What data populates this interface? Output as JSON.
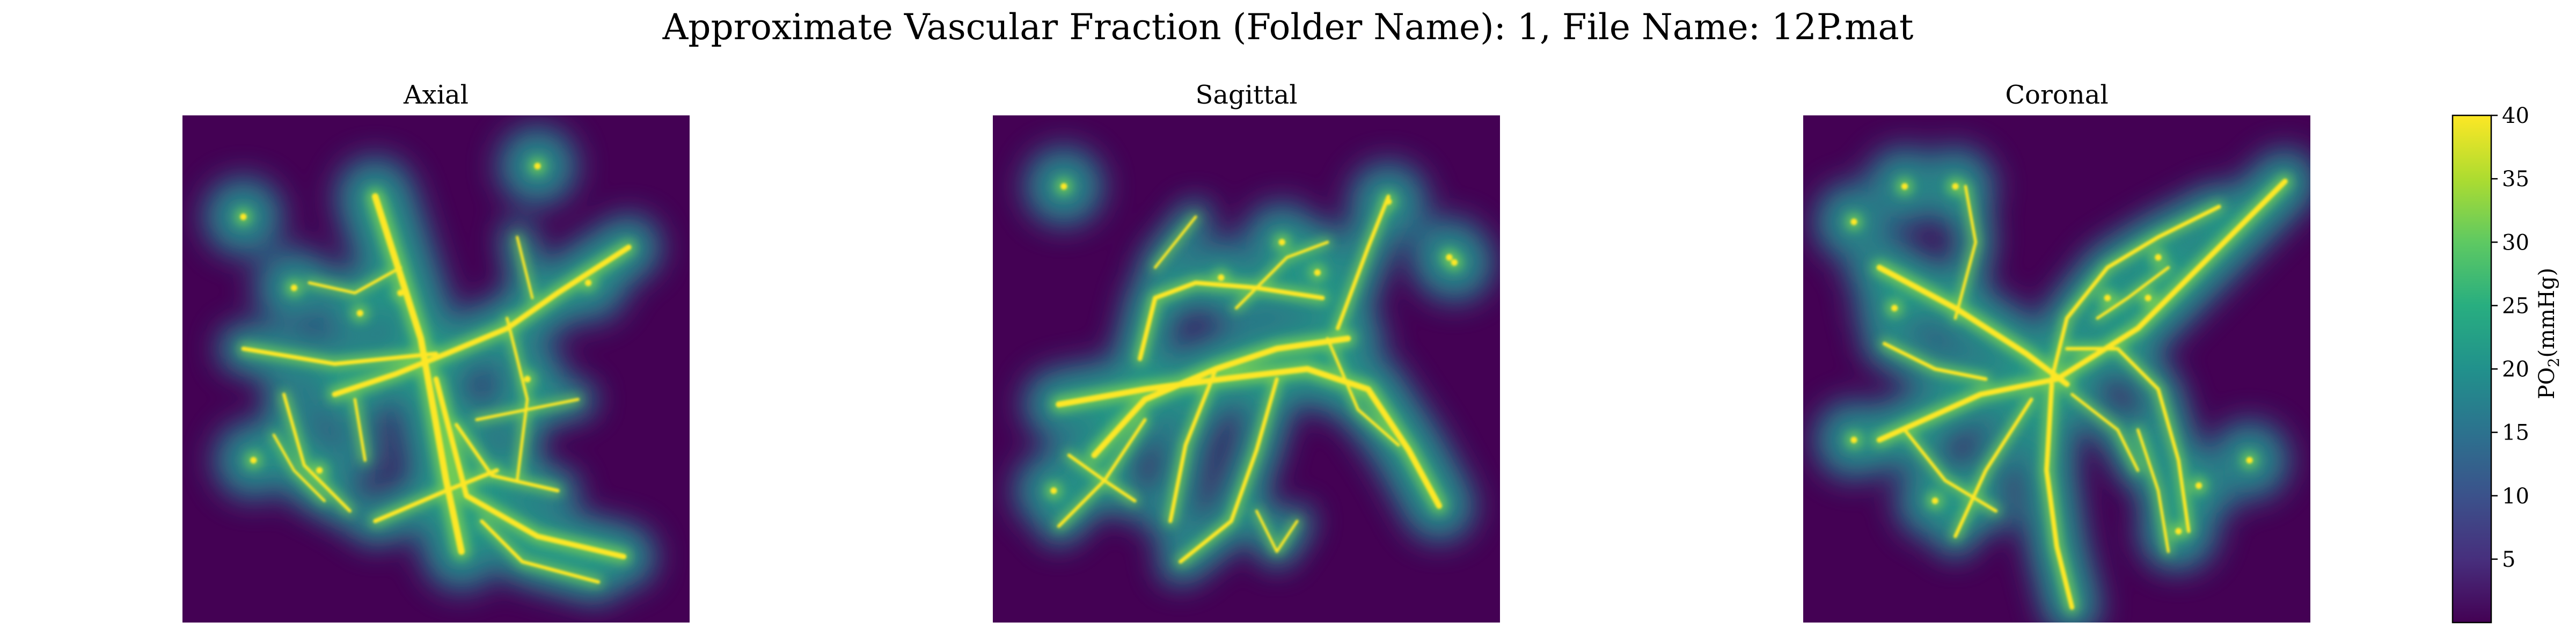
{
  "figure": {
    "suptitle": "Approximate Vascular Fraction (Folder Name): 1, File Name: 12P.mat"
  },
  "chart_data": {
    "type": "heatmap",
    "panels": [
      {
        "title": "Axial",
        "vessels": [
          {
            "points": [
              [
                0.38,
                0.16
              ],
              [
                0.47,
                0.44
              ],
              [
                0.52,
                0.72
              ],
              [
                0.55,
                0.86
              ]
            ],
            "w": 2.2
          },
          {
            "points": [
              [
                0.12,
                0.46
              ],
              [
                0.3,
                0.49
              ],
              [
                0.5,
                0.47
              ]
            ],
            "w": 1.4
          },
          {
            "points": [
              [
                0.3,
                0.55
              ],
              [
                0.42,
                0.51
              ],
              [
                0.52,
                0.47
              ],
              [
                0.64,
                0.42
              ],
              [
                0.74,
                0.35
              ],
              [
                0.88,
                0.26
              ]
            ],
            "w": 1.8
          },
          {
            "points": [
              [
                0.5,
                0.52
              ],
              [
                0.56,
                0.75
              ],
              [
                0.7,
                0.83
              ],
              [
                0.87,
                0.87
              ]
            ],
            "w": 1.8
          },
          {
            "points": [
              [
                0.38,
                0.8
              ],
              [
                0.52,
                0.74
              ],
              [
                0.62,
                0.7
              ]
            ],
            "w": 1.4
          },
          {
            "points": [
              [
                0.33,
                0.78
              ],
              [
                0.24,
                0.69
              ],
              [
                0.2,
                0.55
              ]
            ],
            "w": 1.1
          },
          {
            "points": [
              [
                0.54,
                0.61
              ],
              [
                0.61,
                0.71
              ],
              [
                0.74,
                0.74
              ]
            ],
            "w": 1.2
          },
          {
            "points": [
              [
                0.25,
                0.33
              ],
              [
                0.34,
                0.35
              ],
              [
                0.43,
                0.3
              ]
            ],
            "w": 1.0
          },
          {
            "points": [
              [
                0.64,
                0.4
              ],
              [
                0.68,
                0.56
              ],
              [
                0.66,
                0.72
              ]
            ],
            "w": 1.0
          },
          {
            "points": [
              [
                0.66,
                0.24
              ],
              [
                0.69,
                0.36
              ]
            ],
            "w": 0.9
          },
          {
            "points": [
              [
                0.34,
                0.56
              ],
              [
                0.36,
                0.68
              ]
            ],
            "w": 1.0
          },
          {
            "points": [
              [
                0.59,
                0.8
              ],
              [
                0.67,
                0.88
              ],
              [
                0.82,
                0.92
              ]
            ],
            "w": 1.2
          },
          {
            "points": [
              [
                0.58,
                0.6
              ],
              [
                0.68,
                0.58
              ],
              [
                0.78,
                0.56
              ]
            ],
            "w": 1.0
          },
          {
            "points": [
              [
                0.18,
                0.63
              ],
              [
                0.22,
                0.7
              ],
              [
                0.28,
                0.76
              ]
            ],
            "w": 0.9
          }
        ],
        "blobs": [
          [
            0.12,
            0.2
          ],
          [
            0.7,
            0.1
          ],
          [
            0.22,
            0.34
          ],
          [
            0.35,
            0.39
          ],
          [
            0.8,
            0.33
          ],
          [
            0.68,
            0.52
          ],
          [
            0.14,
            0.68
          ],
          [
            0.43,
            0.35
          ],
          [
            0.27,
            0.7
          ]
        ]
      },
      {
        "title": "Sagittal",
        "vessels": [
          {
            "points": [
              [
                0.13,
                0.57
              ],
              [
                0.3,
                0.54
              ],
              [
                0.45,
                0.52
              ],
              [
                0.62,
                0.5
              ],
              [
                0.74,
                0.54
              ],
              [
                0.82,
                0.66
              ],
              [
                0.88,
                0.77
              ]
            ],
            "w": 2.0
          },
          {
            "points": [
              [
                0.2,
                0.67
              ],
              [
                0.3,
                0.56
              ],
              [
                0.44,
                0.5
              ],
              [
                0.56,
                0.46
              ],
              [
                0.7,
                0.44
              ]
            ],
            "w": 2.0
          },
          {
            "points": [
              [
                0.29,
                0.48
              ],
              [
                0.32,
                0.36
              ],
              [
                0.4,
                0.33
              ],
              [
                0.52,
                0.34
              ],
              [
                0.65,
                0.36
              ]
            ],
            "w": 1.5
          },
          {
            "points": [
              [
                0.44,
                0.5
              ],
              [
                0.38,
                0.65
              ],
              [
                0.35,
                0.8
              ]
            ],
            "w": 1.3
          },
          {
            "points": [
              [
                0.56,
                0.52
              ],
              [
                0.52,
                0.66
              ],
              [
                0.47,
                0.8
              ],
              [
                0.37,
                0.88
              ]
            ],
            "w": 1.3
          },
          {
            "points": [
              [
                0.15,
                0.67
              ],
              [
                0.22,
                0.72
              ],
              [
                0.28,
                0.76
              ]
            ],
            "w": 1.1
          },
          {
            "points": [
              [
                0.13,
                0.81
              ],
              [
                0.22,
                0.72
              ],
              [
                0.3,
                0.6
              ]
            ],
            "w": 1.1
          },
          {
            "points": [
              [
                0.68,
                0.42
              ],
              [
                0.74,
                0.26
              ],
              [
                0.78,
                0.16
              ]
            ],
            "w": 1.3
          },
          {
            "points": [
              [
                0.66,
                0.44
              ],
              [
                0.72,
                0.58
              ],
              [
                0.8,
                0.65
              ]
            ],
            "w": 1.0
          },
          {
            "points": [
              [
                0.48,
                0.38
              ],
              [
                0.58,
                0.28
              ],
              [
                0.66,
                0.25
              ]
            ],
            "w": 1.0
          },
          {
            "points": [
              [
                0.52,
                0.78
              ],
              [
                0.56,
                0.86
              ],
              [
                0.6,
                0.8
              ]
            ],
            "w": 0.9
          },
          {
            "points": [
              [
                0.4,
                0.2
              ],
              [
                0.32,
                0.3
              ]
            ],
            "w": 0.9
          }
        ],
        "blobs": [
          [
            0.14,
            0.14
          ],
          [
            0.78,
            0.17
          ],
          [
            0.9,
            0.28
          ],
          [
            0.91,
            0.29
          ],
          [
            0.57,
            0.25
          ],
          [
            0.45,
            0.32
          ],
          [
            0.64,
            0.31
          ],
          [
            0.12,
            0.74
          ]
        ]
      },
      {
        "title": "Coronal",
        "vessels": [
          {
            "points": [
              [
                0.15,
                0.64
              ],
              [
                0.35,
                0.55
              ],
              [
                0.5,
                0.52
              ],
              [
                0.66,
                0.42
              ],
              [
                0.82,
                0.26
              ],
              [
                0.95,
                0.13
              ]
            ],
            "w": 1.8
          },
          {
            "points": [
              [
                0.15,
                0.3
              ],
              [
                0.3,
                0.38
              ],
              [
                0.44,
                0.47
              ],
              [
                0.52,
                0.53
              ]
            ],
            "w": 1.9
          },
          {
            "points": [
              [
                0.49,
                0.52
              ],
              [
                0.52,
                0.4
              ],
              [
                0.6,
                0.3
              ],
              [
                0.7,
                0.24
              ],
              [
                0.82,
                0.18
              ]
            ],
            "w": 1.3
          },
          {
            "points": [
              [
                0.49,
                0.53
              ],
              [
                0.48,
                0.7
              ],
              [
                0.5,
                0.85
              ],
              [
                0.53,
                0.97
              ]
            ],
            "w": 1.6
          },
          {
            "points": [
              [
                0.45,
                0.56
              ],
              [
                0.36,
                0.7
              ],
              [
                0.3,
                0.83
              ]
            ],
            "w": 1.2
          },
          {
            "points": [
              [
                0.2,
                0.62
              ],
              [
                0.28,
                0.72
              ],
              [
                0.38,
                0.78
              ]
            ],
            "w": 1.1
          },
          {
            "points": [
              [
                0.52,
                0.46
              ],
              [
                0.62,
                0.46
              ],
              [
                0.7,
                0.54
              ],
              [
                0.74,
                0.68
              ],
              [
                0.76,
                0.82
              ]
            ],
            "w": 1.2
          },
          {
            "points": [
              [
                0.53,
                0.55
              ],
              [
                0.62,
                0.62
              ],
              [
                0.66,
                0.7
              ]
            ],
            "w": 1.0
          },
          {
            "points": [
              [
                0.3,
                0.4
              ],
              [
                0.34,
                0.25
              ],
              [
                0.32,
                0.14
              ]
            ],
            "w": 1.0
          },
          {
            "points": [
              [
                0.16,
                0.45
              ],
              [
                0.26,
                0.5
              ],
              [
                0.36,
                0.52
              ]
            ],
            "w": 1.2
          },
          {
            "points": [
              [
                0.58,
                0.4
              ],
              [
                0.64,
                0.36
              ],
              [
                0.72,
                0.3
              ]
            ],
            "w": 1.0
          },
          {
            "points": [
              [
                0.66,
                0.62
              ],
              [
                0.7,
                0.74
              ],
              [
                0.72,
                0.86
              ]
            ],
            "w": 1.0
          }
        ],
        "blobs": [
          [
            0.2,
            0.14
          ],
          [
            0.1,
            0.21
          ],
          [
            0.3,
            0.14
          ],
          [
            0.18,
            0.38
          ],
          [
            0.7,
            0.28
          ],
          [
            0.6,
            0.36
          ],
          [
            0.68,
            0.36
          ],
          [
            0.1,
            0.64
          ],
          [
            0.26,
            0.76
          ],
          [
            0.78,
            0.73
          ],
          [
            0.74,
            0.82
          ],
          [
            0.88,
            0.68
          ]
        ]
      }
    ],
    "colorbar": {
      "label_main": "PO",
      "label_sub": "2",
      "label_rest": "(mmHg)",
      "vmin": 0,
      "vmax": 40,
      "ticks": [
        "5",
        "10",
        "15",
        "20",
        "25",
        "30",
        "35",
        "40"
      ],
      "colormap": "viridis"
    }
  }
}
